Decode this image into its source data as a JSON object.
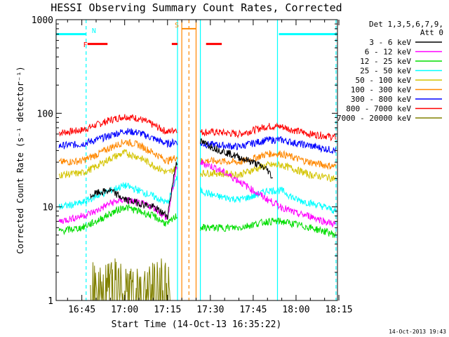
{
  "chart_data": {
    "type": "line",
    "title": "HESSI Observing Summary Count Rates, Corrected",
    "xlabel": "Start Time (14-Oct-13 16:35:22)",
    "ylabel": "Corrected Count Rate (s⁻¹ detector⁻¹)",
    "yscale": "log",
    "ylim": [
      1,
      1000
    ],
    "xlim_minutes": [
      36.0,
      134.5
    ],
    "x_tick_labels": [
      "16:45",
      "17:00",
      "17:15",
      "17:30",
      "17:45",
      "18:00",
      "18:15"
    ],
    "x_tick_minutes": [
      45,
      60,
      75,
      90,
      105,
      120,
      135
    ],
    "y_tick_labels": [
      "1",
      "10",
      "100",
      "1000"
    ],
    "y_tick_values": [
      1,
      10,
      100,
      1000
    ],
    "legend": {
      "position": "right-outside",
      "header": [
        "Det 1,3,5,6,7,9,",
        "Att 0"
      ],
      "entries": [
        {
          "label": "3 - 6 keV",
          "color": "#000000"
        },
        {
          "label": "6 - 12 keV",
          "color": "#ff00ff"
        },
        {
          "label": "12 - 25 keV",
          "color": "#00dd00"
        },
        {
          "label": "25 - 50 keV",
          "color": "#00ffff"
        },
        {
          "label": "50 - 100 keV",
          "color": "#d4c400"
        },
        {
          "label": "100 - 300 keV",
          "color": "#ff8800"
        },
        {
          "label": "300 - 800 keV",
          "color": "#0000ff"
        },
        {
          "label": "800 - 7000 keV",
          "color": "#ff0000"
        },
        {
          "label": "7000 - 20000 keV",
          "color": "#808000"
        }
      ]
    },
    "data_gaps_minutes": [
      [
        78.5,
        86.5
      ]
    ],
    "series": [
      {
        "name": "800 - 7000 keV",
        "color": "#ff0000",
        "x": [
          37,
          45,
          50,
          55,
          60,
          65,
          70,
          75,
          78,
          86.5,
          92,
          100,
          105,
          110,
          115,
          120,
          125,
          130,
          134
        ],
        "y": [
          62,
          66,
          75,
          85,
          93,
          88,
          75,
          63,
          68,
          63,
          63,
          60,
          66,
          73,
          72,
          65,
          60,
          58,
          55
        ]
      },
      {
        "name": "300 - 800 keV",
        "color": "#0000ff",
        "x": [
          37,
          45,
          50,
          55,
          60,
          65,
          70,
          75,
          78,
          86.5,
          92,
          100,
          105,
          110,
          115,
          120,
          125,
          130,
          134
        ],
        "y": [
          45,
          47,
          52,
          58,
          65,
          62,
          54,
          47,
          50,
          47,
          46,
          44,
          48,
          52,
          52,
          48,
          45,
          42,
          40
        ]
      },
      {
        "name": "100 - 300 keV",
        "color": "#ff8800",
        "x": [
          37,
          45,
          50,
          55,
          60,
          65,
          70,
          75,
          78,
          86.5,
          92,
          100,
          105,
          110,
          115,
          120,
          125,
          130,
          134
        ],
        "y": [
          30,
          31,
          36,
          43,
          50,
          46,
          38,
          31,
          34,
          31,
          31,
          30,
          33,
          37,
          37,
          33,
          30,
          28,
          27
        ]
      },
      {
        "name": "50 - 100 keV",
        "color": "#d4c400",
        "x": [
          37,
          45,
          50,
          55,
          60,
          65,
          70,
          75,
          78,
          86.5,
          92,
          100,
          105,
          110,
          115,
          120,
          125,
          130,
          134
        ],
        "y": [
          22,
          23,
          27,
          33,
          38,
          34,
          28,
          23,
          26,
          23,
          23,
          22,
          25,
          28,
          28,
          25,
          22,
          21,
          20
        ]
      },
      {
        "name": "25 - 50 keV",
        "color": "#00ffff",
        "x": [
          37,
          45,
          50,
          55,
          60,
          65,
          70,
          75,
          78,
          86.5,
          92,
          100,
          105,
          110,
          115,
          120,
          125,
          130,
          134
        ],
        "y": [
          10,
          11,
          13,
          15,
          17,
          15,
          13,
          11,
          20,
          15,
          13,
          12,
          13,
          15,
          15,
          12,
          11,
          10,
          9
        ]
      },
      {
        "name": "6 - 12 keV",
        "color": "#ff00ff",
        "x": [
          37,
          45,
          50,
          55,
          60,
          65,
          70,
          75,
          78,
          86.5,
          92,
          100,
          105,
          110,
          115,
          120,
          125,
          130,
          134
        ],
        "y": [
          7,
          8,
          9,
          11,
          12,
          11,
          10,
          7.5,
          25,
          30,
          26,
          19,
          15,
          12,
          10,
          8.5,
          8,
          7,
          6.5
        ]
      },
      {
        "name": "12 - 25 keV",
        "color": "#00dd00",
        "x": [
          37,
          45,
          50,
          55,
          60,
          65,
          70,
          75,
          78,
          86.5,
          92,
          100,
          105,
          110,
          115,
          120,
          125,
          130,
          134
        ],
        "y": [
          5.5,
          6,
          7,
          8.5,
          10,
          9,
          8,
          6.5,
          8,
          6,
          6,
          6,
          6.5,
          7,
          7,
          6.5,
          6,
          5.5,
          5
        ]
      },
      {
        "name": "3 - 6 keV",
        "color": "#000000",
        "x": [
          48,
          50,
          55,
          60,
          65,
          70,
          75,
          78,
          86.5,
          92,
          100,
          105,
          110,
          112
        ],
        "y": [
          13,
          14,
          15,
          12,
          11,
          10,
          8,
          30,
          50,
          42,
          34,
          30,
          25,
          20
        ]
      },
      {
        "name": "7000 - 20000 keV",
        "color": "#808000",
        "x": [
          48,
          52,
          56,
          60,
          64,
          68,
          72,
          76
        ],
        "y": [
          2,
          1.5,
          2,
          1.5,
          1.8,
          1.5,
          2,
          1.5
        ]
      }
    ],
    "annotations": [
      {
        "label": "N",
        "color": "#00ffff"
      },
      {
        "label": "F",
        "color": "#ff0000"
      },
      {
        "label": "S",
        "color": "#ff8800"
      }
    ],
    "status_bars": [
      {
        "kind": "night",
        "color": "#00ffff",
        "start": 36,
        "end": 46.5,
        "level": 700
      },
      {
        "kind": "night",
        "color": "#00ffff",
        "start": 114,
        "end": 134.5,
        "level": 700
      },
      {
        "kind": "flare",
        "color": "#ff0000",
        "start": 47,
        "end": 54,
        "level": 550
      },
      {
        "kind": "flare",
        "color": "#ff0000",
        "start": 76.5,
        "end": 78.5,
        "level": 550
      },
      {
        "kind": "flare",
        "color": "#ff0000",
        "start": 88.5,
        "end": 94,
        "level": 550
      }
    ],
    "saa_bar": {
      "label": "S",
      "color": "#ff8800",
      "start": 80,
      "end": 85,
      "level": 800
    },
    "vertical_markers": [
      {
        "x": 46.5,
        "color": "#00ffff",
        "style": "dashed"
      },
      {
        "x": 78.5,
        "color": "#00ffff",
        "style": "solid"
      },
      {
        "x": 86.5,
        "color": "#00ffff",
        "style": "solid"
      },
      {
        "x": 113.5,
        "color": "#00ffff",
        "style": "solid"
      },
      {
        "x": 134.0,
        "color": "#00ffff",
        "style": "dashed"
      },
      {
        "x": 80.0,
        "color": "#ff8800",
        "style": "solid"
      },
      {
        "x": 82.5,
        "color": "#ff8800",
        "style": "dashed"
      },
      {
        "x": 85.0,
        "color": "#ff8800",
        "style": "solid"
      }
    ],
    "footer_timestamp": "14-Oct-2013 19:43"
  }
}
